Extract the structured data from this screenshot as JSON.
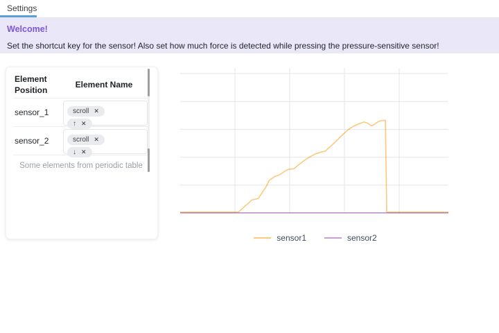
{
  "tabbar": {
    "tabs": [
      {
        "label": "Settings",
        "active": true
      }
    ]
  },
  "banner": {
    "title": "Welcome!",
    "description": "Set the shortcut key for the sensor! Also set how much force is detected while pressing the pressure-sensitive sensor!"
  },
  "panel": {
    "table": {
      "columns": [
        "Element Position",
        "Element Name"
      ],
      "rows": [
        {
          "position": "sensor_1",
          "tags": [
            {
              "label": "scroll"
            },
            {
              "label": "↑"
            }
          ]
        },
        {
          "position": "sensor_2",
          "tags": [
            {
              "label": "scroll"
            },
            {
              "label": "↓"
            }
          ]
        }
      ],
      "footer": "Some elements from periodic table"
    }
  },
  "icons": {
    "remove_tag": "✕"
  },
  "colors": {
    "accent_tab": "#5aa0d7",
    "banner_bg": "#eae7f9",
    "banner_title": "#7d55dd",
    "grid": "#e5e5e5",
    "sensor1": "#fcc97d",
    "sensor2": "#cd9bd6"
  },
  "chart_data": {
    "type": "line",
    "title": "",
    "xlabel": "",
    "ylabel": "",
    "x_range": [
      0,
      100
    ],
    "y_range": [
      0,
      100
    ],
    "axis_tick_labels_visible": false,
    "grid": {
      "h_lines": 6,
      "v_lines": 4,
      "on": true
    },
    "legend": {
      "position": "bottom",
      "entries": [
        "sensor1",
        "sensor2"
      ]
    },
    "series": [
      {
        "name": "sensor1",
        "color": "#fcc97d",
        "points": [
          [
            0,
            0.6
          ],
          [
            21.7,
            0.6
          ],
          [
            24.5,
            5.5
          ],
          [
            25.8,
            7.6
          ],
          [
            26.7,
            9.3
          ],
          [
            29.1,
            10.4
          ],
          [
            31.9,
            18.4
          ],
          [
            33.2,
            23.4
          ],
          [
            35.3,
            26.2
          ],
          [
            36.9,
            27.2
          ],
          [
            38.8,
            29.7
          ],
          [
            40.3,
            31.3
          ],
          [
            42.4,
            31.7
          ],
          [
            43.9,
            34.2
          ],
          [
            46.5,
            38.0
          ],
          [
            48.2,
            40.0
          ],
          [
            50.4,
            42.4
          ],
          [
            53.0,
            43.9
          ],
          [
            54.1,
            44.4
          ],
          [
            56.8,
            49.1
          ],
          [
            58.6,
            52.4
          ],
          [
            60.3,
            55.7
          ],
          [
            62.0,
            58.6
          ],
          [
            63.3,
            60.7
          ],
          [
            64.6,
            62.2
          ],
          [
            66.0,
            63.5
          ],
          [
            68.5,
            65.2
          ],
          [
            69.8,
            64.5
          ],
          [
            71.3,
            62.5
          ],
          [
            72.4,
            63.5
          ],
          [
            73.6,
            65.2
          ],
          [
            74.8,
            66.2
          ],
          [
            76.5,
            66.5
          ],
          [
            77.0,
            0.6
          ],
          [
            100,
            0.6
          ]
        ]
      },
      {
        "name": "sensor2",
        "color": "#cd9bd6",
        "points": [
          [
            0,
            0.1
          ],
          [
            100,
            0.1
          ]
        ]
      }
    ]
  }
}
